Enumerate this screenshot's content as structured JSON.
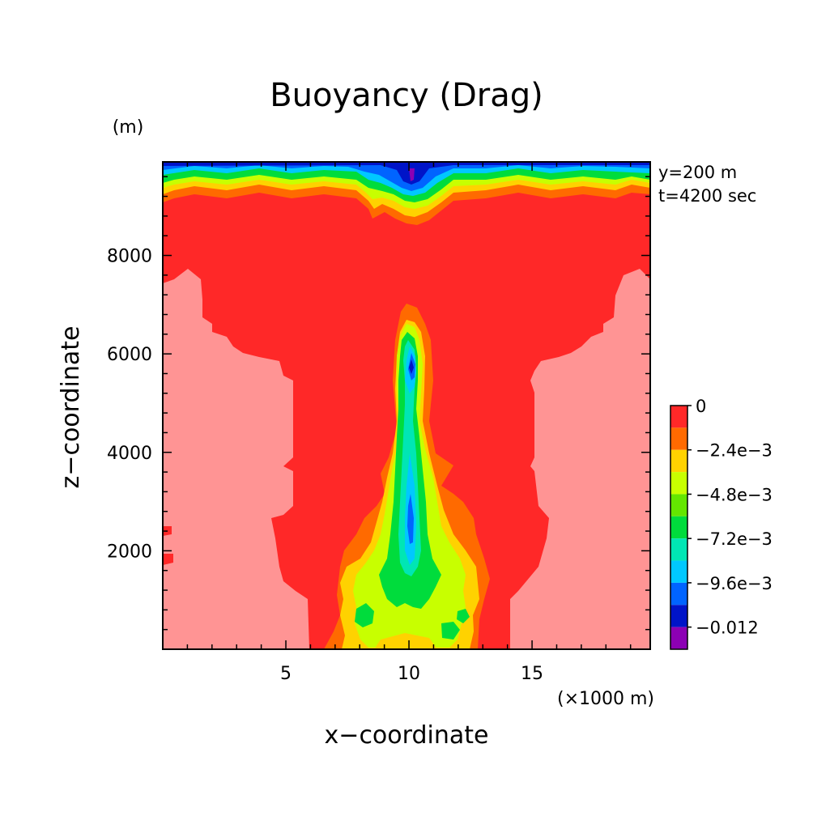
{
  "chart_data": {
    "type": "heatmap",
    "title": "Buoyancy (Drag)",
    "xlabel": "x−coordinate",
    "ylabel": "z−coordinate",
    "x_unit": "(×1000 m)",
    "y_unit": "(m)",
    "annotations": [
      "y=200 m",
      "t=4200 sec"
    ],
    "xlim": [
      0,
      19.8
    ],
    "ylim": [
      0,
      9900
    ],
    "x_ticks": [
      5,
      10,
      15
    ],
    "y_ticks": [
      2000,
      4000,
      6000,
      8000
    ],
    "colorbar": {
      "labels": [
        "0",
        "−2.4e−3",
        "−4.8e−3",
        "−7.2e−3",
        "−9.6e−3",
        "−0.012"
      ],
      "levels": [
        0.0012,
        0,
        -0.0012,
        -0.0024,
        -0.0036,
        -0.0048,
        -0.006,
        -0.0072,
        -0.0084,
        -0.0096,
        -0.0108,
        -0.012,
        -0.0132
      ],
      "colors": [
        "#ff9494",
        "#ff2828",
        "#ff6a00",
        "#ffd200",
        "#c8ff00",
        "#64e600",
        "#00dc3c",
        "#00e6b4",
        "#00c8ff",
        "#0064ff",
        "#0014c8",
        "#8c00b4"
      ]
    },
    "regions": [
      {
        "name": "upper layer",
        "value_range": [
          -0.0132,
          0
        ],
        "description": "strongly negative near top (z>9300 m)"
      },
      {
        "name": "outer lower region",
        "value_range": [
          0,
          0.0012
        ],
        "x_range": [
          0,
          5.2
        ],
        "z_range": [
          0,
          7500
        ]
      },
      {
        "name": "outer lower region right",
        "value_range": [
          0,
          0.0012
        ],
        "x_range": [
          15,
          19.8
        ],
        "z_range": [
          0,
          7500
        ]
      },
      {
        "name": "central plume",
        "value_range": [
          -0.012,
          0
        ],
        "x_range": [
          7.5,
          13.2
        ],
        "z_range": [
          0,
          7000
        ]
      }
    ]
  }
}
